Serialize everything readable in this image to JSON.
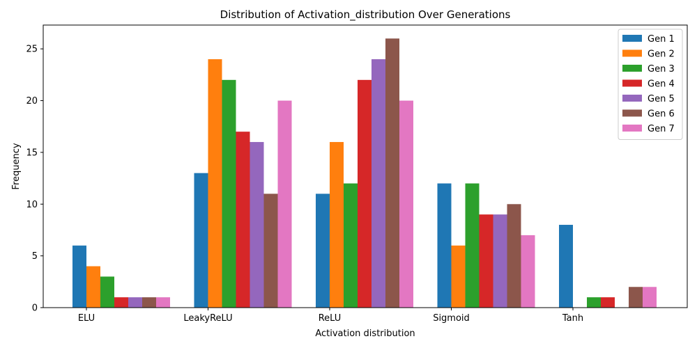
{
  "chart_data": {
    "type": "bar",
    "title": "Distribution of Activation_distribution Over Generations",
    "xlabel": "Activation distribution",
    "ylabel": "Frequency",
    "categories": [
      "ELU",
      "LeakyReLU",
      "ReLU",
      "Sigmoid",
      "Tanh"
    ],
    "ylim": [
      0,
      27.3
    ],
    "yticks": [
      0,
      5,
      10,
      15,
      20,
      25
    ],
    "grid": false,
    "legend_position": "top-right",
    "series": [
      {
        "name": "Gen 1",
        "color": "#1f77b4",
        "values": [
          6,
          13,
          11,
          12,
          8
        ]
      },
      {
        "name": "Gen 2",
        "color": "#ff7f0e",
        "values": [
          4,
          24,
          16,
          6,
          0
        ]
      },
      {
        "name": "Gen 3",
        "color": "#2ca02c",
        "values": [
          3,
          22,
          12,
          12,
          1
        ]
      },
      {
        "name": "Gen 4",
        "color": "#d62728",
        "values": [
          1,
          17,
          22,
          9,
          1
        ]
      },
      {
        "name": "Gen 5",
        "color": "#9467bd",
        "values": [
          1,
          16,
          24,
          9,
          0
        ]
      },
      {
        "name": "Gen 6",
        "color": "#8c564b",
        "values": [
          1,
          11,
          26,
          10,
          2
        ]
      },
      {
        "name": "Gen 7",
        "color": "#e377c2",
        "values": [
          1,
          20,
          20,
          7,
          2
        ]
      }
    ]
  }
}
